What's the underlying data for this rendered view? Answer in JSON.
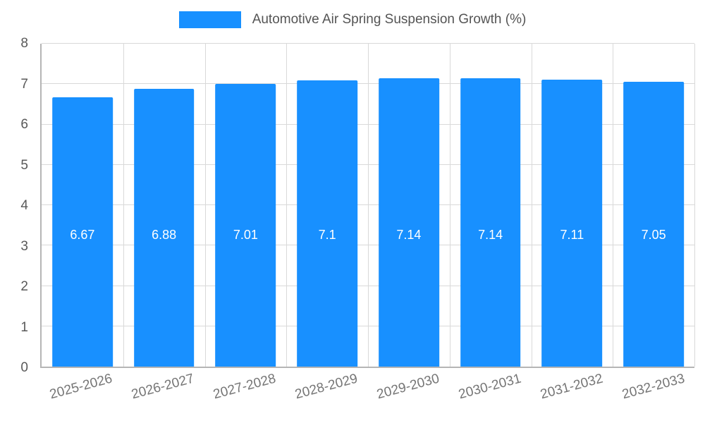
{
  "chart_data": {
    "type": "bar",
    "title": "Automotive Air Spring Suspension Growth (%)",
    "categories": [
      "2025-2026",
      "2026-2027",
      "2027-2028",
      "2028-2029",
      "2029-2030",
      "2030-2031",
      "2031-2032",
      "2032-2033"
    ],
    "values": [
      6.67,
      6.88,
      7.01,
      7.1,
      7.14,
      7.14,
      7.11,
      7.05
    ],
    "xlabel": "",
    "ylabel": "",
    "ylim": [
      0,
      8
    ],
    "ytick_step": 1,
    "grid": true,
    "legend_position": "top-center",
    "bar_color": "#1890ff",
    "value_label_color": "#ffffff",
    "axis_text_color": "#595959",
    "xtick_rotation_deg": -15
  }
}
